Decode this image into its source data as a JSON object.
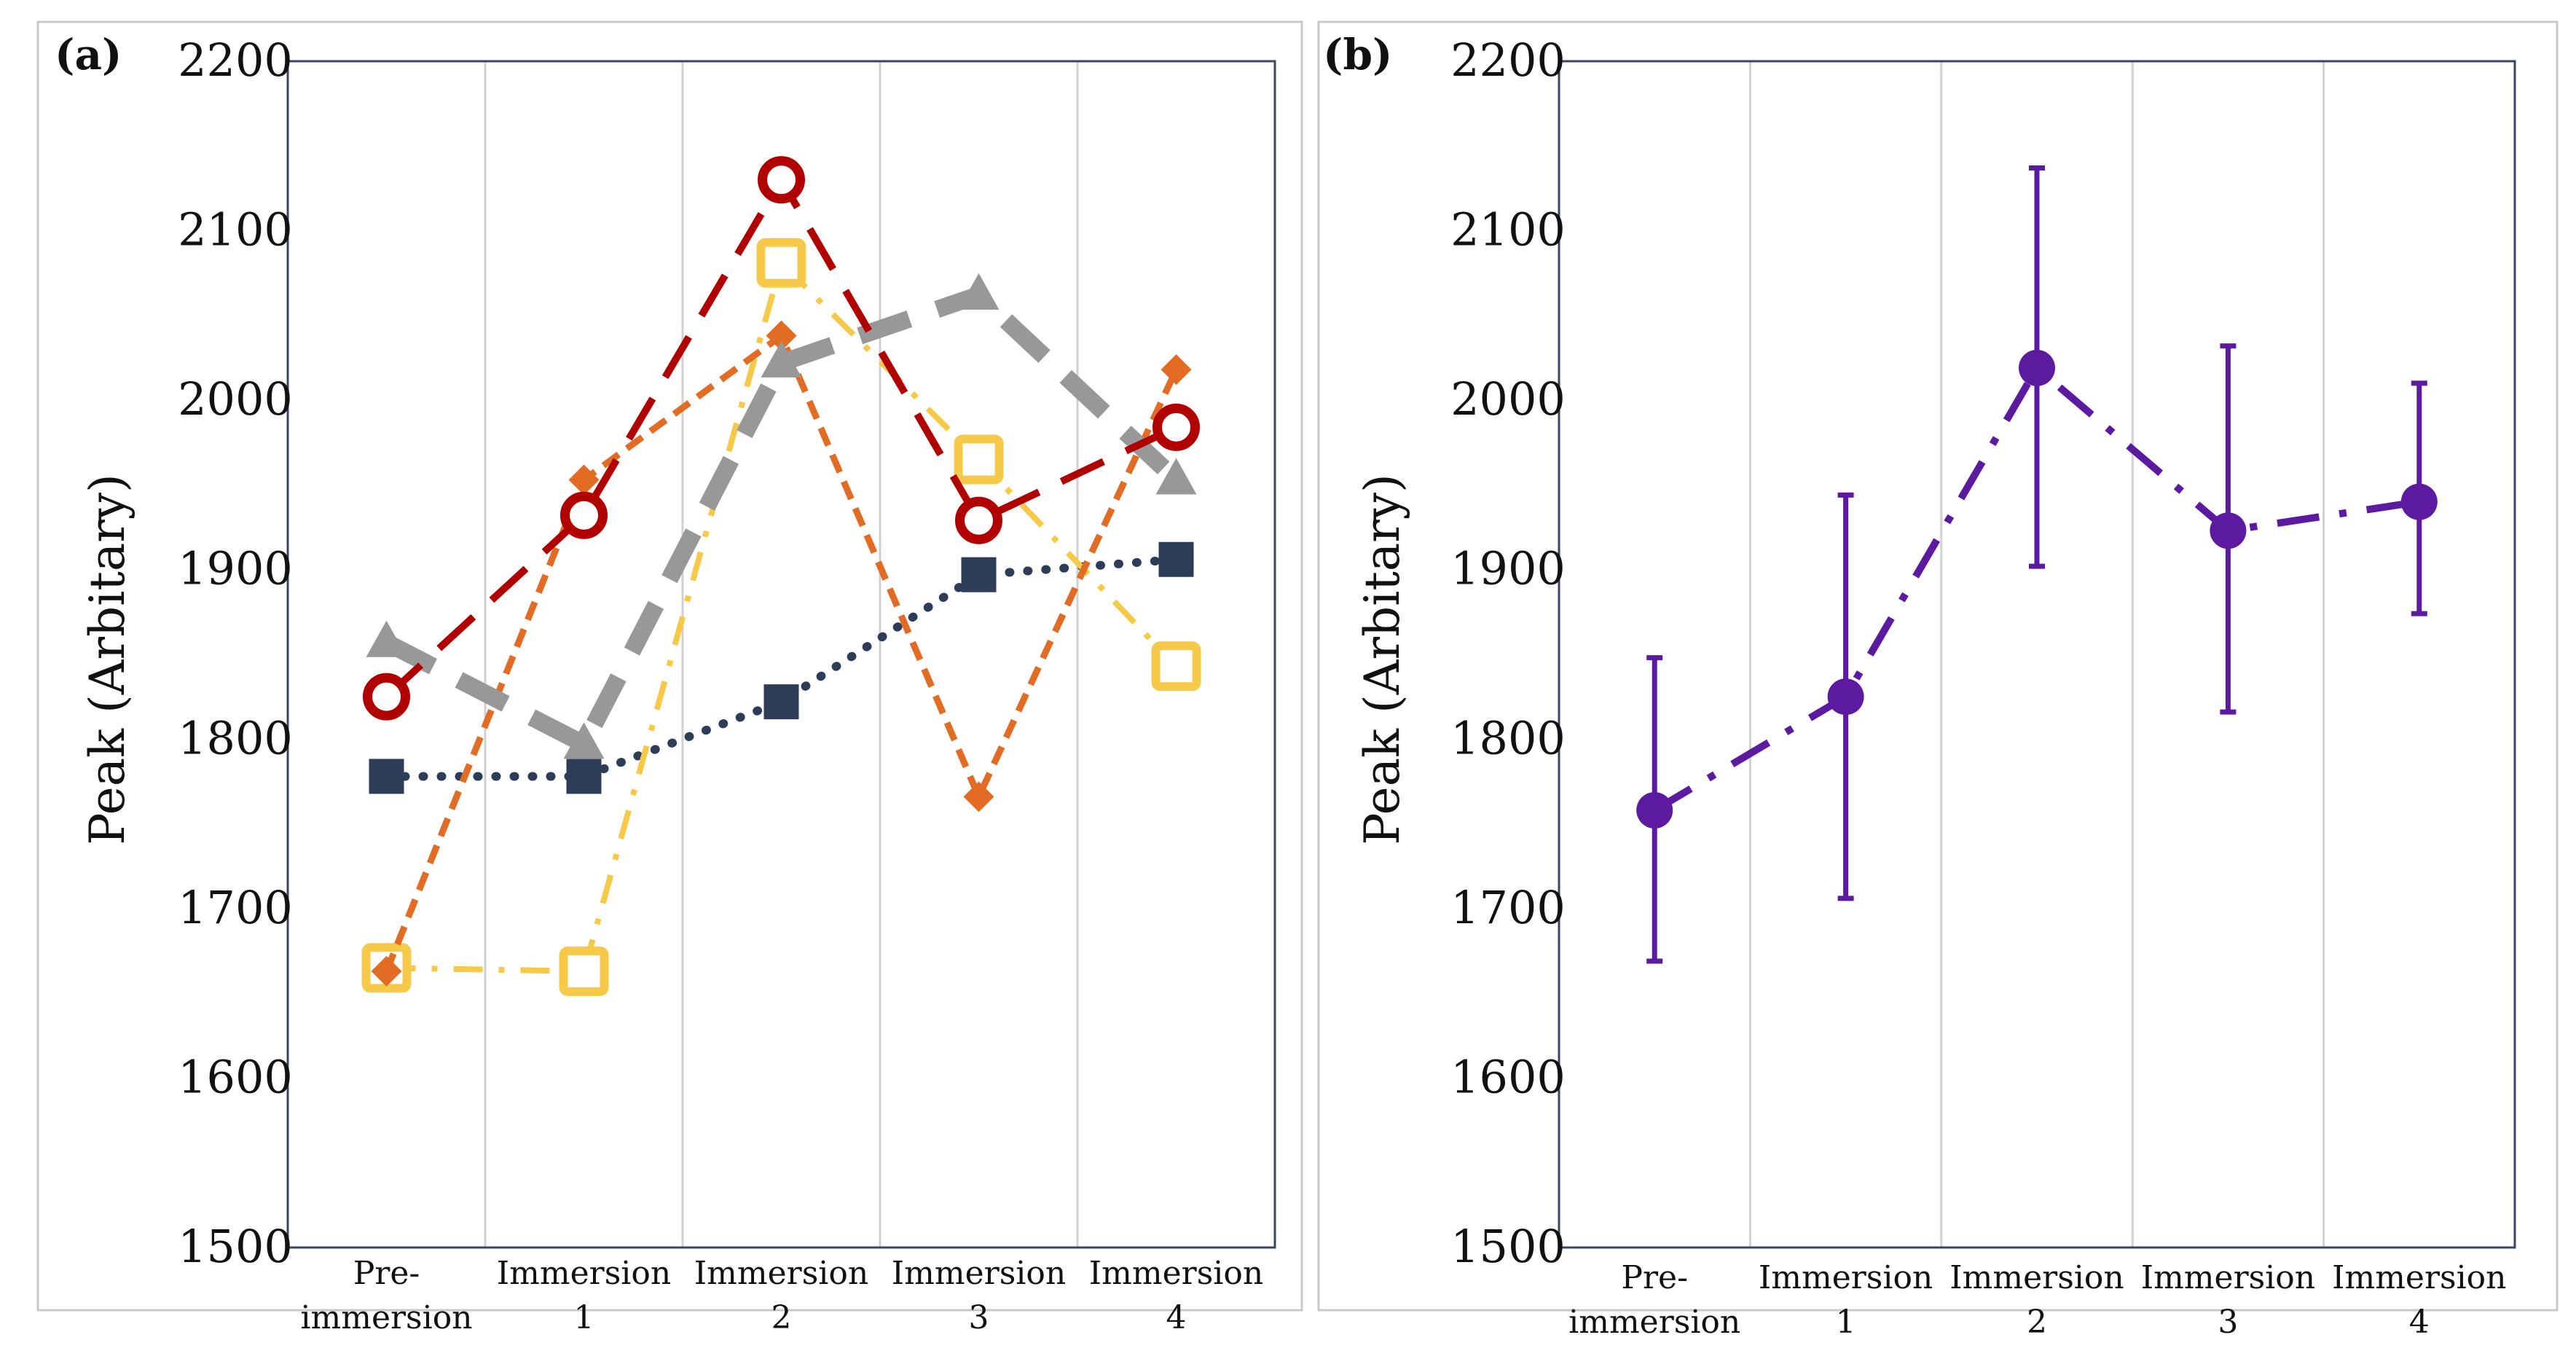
{
  "colors": {
    "frame": "#c8c8c8",
    "axis": "#3a4560",
    "gridline": "#d0d0d0",
    "red": "#b00000",
    "gray": "#989898",
    "yellow": "#f7c948",
    "orange": "#e36c24",
    "navy": "#2e3d57",
    "purple": "#5b1aa0"
  },
  "chart_data": [
    {
      "panel_label": "(a)",
      "type": "line",
      "ylabel": "Peak (Arbitary)",
      "xlabel": "",
      "ylim": [
        1500,
        2200
      ],
      "yticks": [
        "1500",
        "1600",
        "1700",
        "1800",
        "1900",
        "2000",
        "2100",
        "2200"
      ],
      "categories": [
        {
          "line1": "Pre-",
          "line2": "immersion"
        },
        {
          "line1": "Immersion",
          "line2": "1"
        },
        {
          "line1": "Immersion",
          "line2": "2"
        },
        {
          "line1": "Immersion",
          "line2": "3"
        },
        {
          "line1": "Immersion",
          "line2": "4"
        }
      ],
      "grid": "vertical",
      "series": [
        {
          "key": "navy-square",
          "color": "navy",
          "marker": "square-filled",
          "dash": "dotted",
          "values": [
            1778,
            1778,
            1822,
            1897,
            1906
          ]
        },
        {
          "key": "yellow-square",
          "color": "yellow",
          "marker": "square-open",
          "dash": "dash-dot",
          "values": [
            1665,
            1663,
            2081,
            1965,
            1843
          ]
        },
        {
          "key": "orange-diamond",
          "color": "orange",
          "marker": "diamond",
          "dash": "short-dash",
          "values": [
            1663,
            1953,
            2038,
            1766,
            2018
          ]
        },
        {
          "key": "gray-triangle",
          "color": "gray",
          "marker": "triangle",
          "dash": "long-dash",
          "values": [
            1857,
            1797,
            2022,
            2062,
            1953
          ]
        },
        {
          "key": "red-circle",
          "color": "red",
          "marker": "circle-open",
          "dash": "long-dash",
          "values": [
            1825,
            1932,
            2130,
            1929,
            1984
          ]
        }
      ]
    },
    {
      "panel_label": "(b)",
      "type": "line",
      "ylabel": "Peak (Arbitary)",
      "xlabel": "",
      "ylim": [
        1500,
        2200
      ],
      "yticks": [
        "1500",
        "1600",
        "1700",
        "1800",
        "1900",
        "2000",
        "2100",
        "2200"
      ],
      "categories": [
        {
          "line1": "Pre-",
          "line2": "immersion"
        },
        {
          "line1": "Immersion",
          "line2": "1"
        },
        {
          "line1": "Immersion",
          "line2": "2"
        },
        {
          "line1": "Immersion",
          "line2": "3"
        },
        {
          "line1": "Immersion",
          "line2": "4"
        }
      ],
      "grid": "vertical",
      "series": [
        {
          "key": "mean",
          "color": "purple",
          "marker": "circle-filled",
          "dash": "dash-dot",
          "values": [
            1758,
            1825,
            2019,
            1923,
            1940
          ],
          "error_low": [
            1669,
            1706,
            1902,
            1816,
            1874
          ],
          "error_high": [
            1848,
            1944,
            2137,
            2032,
            2010
          ]
        }
      ]
    }
  ]
}
